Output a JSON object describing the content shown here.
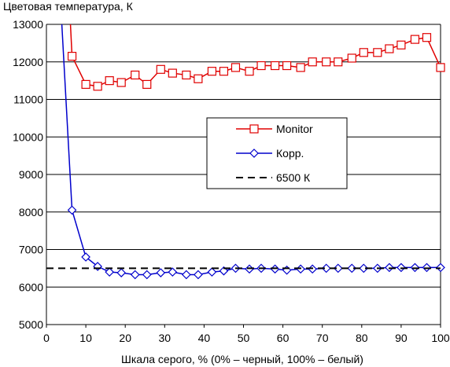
{
  "chart_data": {
    "type": "line",
    "title": "",
    "ylabel": "Цветовая температура, К",
    "xlabel": "Шкала серого, % (0% – черный, 100% – белый)",
    "xlim": [
      0,
      100
    ],
    "ylim": [
      5000,
      13000
    ],
    "xticks": [
      0,
      10,
      20,
      30,
      40,
      50,
      60,
      70,
      80,
      90,
      100
    ],
    "yticks": [
      5000,
      6000,
      7000,
      8000,
      9000,
      10000,
      11000,
      12000,
      13000
    ],
    "grid": "horizontal",
    "legend_position": "center-right",
    "series": [
      {
        "name": "Monitor",
        "color": "#e00000",
        "marker": "square",
        "x": [
          6.5,
          10,
          13,
          16,
          19,
          22.5,
          25.5,
          29,
          32,
          35.5,
          38.5,
          42,
          45,
          48,
          51.5,
          54.5,
          58,
          61,
          64.5,
          67.5,
          71,
          74,
          77.5,
          80.5,
          84,
          87,
          90,
          93.5,
          96.5,
          100
        ],
        "y": [
          12150,
          11400,
          11350,
          11500,
          11450,
          11650,
          11400,
          11800,
          11700,
          11650,
          11550,
          11750,
          11750,
          11850,
          11750,
          11900,
          11900,
          11900,
          11850,
          12000,
          12000,
          12000,
          12100,
          12250,
          12250,
          12350,
          12450,
          12600,
          12650,
          11850
        ],
        "extends_above_top": true
      },
      {
        "name": "Корр.",
        "color": "#0000cc",
        "marker": "diamond",
        "x": [
          6.5,
          10,
          13,
          16,
          19,
          22.5,
          25.5,
          29,
          32,
          35.5,
          38.5,
          42,
          45,
          48,
          51.5,
          54.5,
          58,
          61,
          64.5,
          67.5,
          71,
          74,
          77.5,
          80.5,
          84,
          87,
          90,
          93.5,
          96.5,
          100
        ],
        "y": [
          8050,
          6800,
          6550,
          6400,
          6380,
          6330,
          6330,
          6380,
          6400,
          6330,
          6330,
          6400,
          6430,
          6500,
          6480,
          6500,
          6480,
          6450,
          6480,
          6480,
          6500,
          6500,
          6500,
          6500,
          6500,
          6520,
          6520,
          6520,
          6520,
          6520
        ],
        "extends_above_top": true
      },
      {
        "name": "6500 К",
        "color": "#000000",
        "style": "dashed",
        "x": [
          0,
          100
        ],
        "y": [
          6500,
          6500
        ]
      }
    ]
  }
}
